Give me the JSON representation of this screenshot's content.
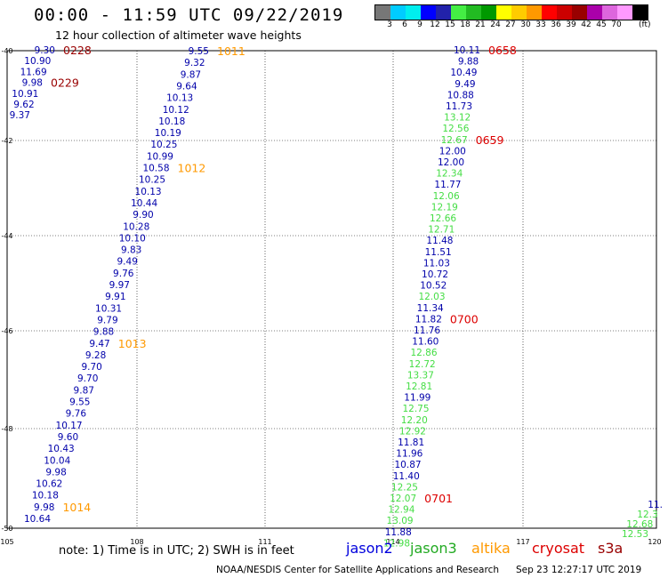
{
  "title": "00:00 - 11:59 UTC 09/22/2019",
  "subtitle": "12 hour collection of altimeter wave heights",
  "color_scale": {
    "swatches": [
      "#777777",
      "#00ccff",
      "#00eeee",
      "#0000ff",
      "#2222aa",
      "#44ee44",
      "#22bb22",
      "#009900",
      "#ffff00",
      "#ffcc00",
      "#ff9900",
      "#ff0000",
      "#cc0000",
      "#990000",
      "#aa00aa",
      "#dd66dd",
      "#ff99ff",
      "#000000"
    ],
    "labels": [
      "3",
      "6",
      "9",
      "12",
      "15",
      "18",
      "21",
      "24",
      "27",
      "30",
      "33",
      "36",
      "39",
      "42",
      "45",
      "70"
    ],
    "unit": "(ft)"
  },
  "map": {
    "lon_ticks": [
      "105",
      "108",
      "111",
      "114",
      "117",
      "120"
    ],
    "lat_ticks": [
      "-40",
      "-42",
      "-44",
      "-46",
      "-48",
      "-50"
    ],
    "track_colors": {
      "jason2": "#0000aa",
      "jason3": "#44dd44",
      "altika": "#ff9900",
      "cryosat": "#dd0000"
    },
    "tracks": [
      {
        "name": "track-west",
        "points": [
          {
            "v": "9.30",
            "s": "jason2"
          },
          {
            "v": "10.90",
            "s": "jason2"
          },
          {
            "v": "11.69",
            "s": "jason2"
          },
          {
            "v": "9.98",
            "s": "jason2"
          },
          {
            "v": "10.91",
            "s": "jason2"
          },
          {
            "v": "9.62",
            "s": "jason2"
          },
          {
            "v": "9.37",
            "s": "jason2"
          }
        ],
        "time_labels": [
          {
            "t": "0228",
            "row": 0,
            "color": "#990000"
          },
          {
            "t": "0229",
            "row": 3,
            "color": "#990000"
          }
        ]
      },
      {
        "name": "track-middle",
        "points": [
          {
            "v": "9.55",
            "s": "jason2"
          },
          {
            "v": "9.32",
            "s": "jason2"
          },
          {
            "v": "9.87",
            "s": "jason2"
          },
          {
            "v": "9.64",
            "s": "jason2"
          },
          {
            "v": "10.13",
            "s": "jason2"
          },
          {
            "v": "10.12",
            "s": "jason2"
          },
          {
            "v": "10.18",
            "s": "jason2"
          },
          {
            "v": "10.19",
            "s": "jason2"
          },
          {
            "v": "10.25",
            "s": "jason2"
          },
          {
            "v": "10.99",
            "s": "jason2"
          },
          {
            "v": "10.58",
            "s": "jason2"
          },
          {
            "v": "10.25",
            "s": "jason2"
          },
          {
            "v": "10.13",
            "s": "jason2"
          },
          {
            "v": "10.44",
            "s": "jason2"
          },
          {
            "v": "9.90",
            "s": "jason2"
          },
          {
            "v": "10.28",
            "s": "jason2"
          },
          {
            "v": "10.10",
            "s": "jason2"
          },
          {
            "v": "9.83",
            "s": "jason2"
          },
          {
            "v": "9.49",
            "s": "jason2"
          },
          {
            "v": "9.76",
            "s": "jason2"
          },
          {
            "v": "9.97",
            "s": "jason2"
          },
          {
            "v": "9.91",
            "s": "jason2"
          },
          {
            "v": "10.31",
            "s": "jason2"
          },
          {
            "v": "9.79",
            "s": "jason2"
          },
          {
            "v": "9.88",
            "s": "jason2"
          },
          {
            "v": "9.47",
            "s": "jason2"
          },
          {
            "v": "9.28",
            "s": "jason2"
          },
          {
            "v": "9.70",
            "s": "jason2"
          },
          {
            "v": "9.70",
            "s": "jason2"
          },
          {
            "v": "9.87",
            "s": "jason2"
          },
          {
            "v": "9.55",
            "s": "jason2"
          },
          {
            "v": "9.76",
            "s": "jason2"
          },
          {
            "v": "10.17",
            "s": "jason2"
          },
          {
            "v": "9.60",
            "s": "jason2"
          },
          {
            "v": "10.43",
            "s": "jason2"
          },
          {
            "v": "10.04",
            "s": "jason2"
          },
          {
            "v": "9.98",
            "s": "jason2"
          },
          {
            "v": "10.62",
            "s": "jason2"
          },
          {
            "v": "10.18",
            "s": "jason2"
          },
          {
            "v": "9.98",
            "s": "jason2"
          },
          {
            "v": "10.64",
            "s": "jason2"
          }
        ],
        "time_labels": [
          {
            "t": "1011",
            "row": 0,
            "color": "#ff9900"
          },
          {
            "t": "1012",
            "row": 10,
            "color": "#ff9900"
          },
          {
            "t": "1013",
            "row": 25,
            "color": "#ff9900"
          },
          {
            "t": "1014",
            "row": 39,
            "color": "#ff9900"
          }
        ]
      },
      {
        "name": "track-east",
        "points": [
          {
            "v": "10.11",
            "s": "jason2"
          },
          {
            "v": "9.88",
            "s": "jason2"
          },
          {
            "v": "10.49",
            "s": "jason2"
          },
          {
            "v": "9.49",
            "s": "jason2"
          },
          {
            "v": "10.88",
            "s": "jason2"
          },
          {
            "v": "11.73",
            "s": "jason2"
          },
          {
            "v": "13.12",
            "s": "jason3"
          },
          {
            "v": "12.56",
            "s": "jason3"
          },
          {
            "v": "12.67",
            "s": "jason3"
          },
          {
            "v": "12.00",
            "s": "jason2"
          },
          {
            "v": "12.00",
            "s": "jason2"
          },
          {
            "v": "12.34",
            "s": "jason3"
          },
          {
            "v": "11.77",
            "s": "jason2"
          },
          {
            "v": "12.06",
            "s": "jason3"
          },
          {
            "v": "12.19",
            "s": "jason3"
          },
          {
            "v": "12.66",
            "s": "jason3"
          },
          {
            "v": "12.71",
            "s": "jason3"
          },
          {
            "v": "11.48",
            "s": "jason2"
          },
          {
            "v": "11.51",
            "s": "jason2"
          },
          {
            "v": "11.03",
            "s": "jason2"
          },
          {
            "v": "10.72",
            "s": "jason2"
          },
          {
            "v": "10.52",
            "s": "jason2"
          },
          {
            "v": "12.03",
            "s": "jason3"
          },
          {
            "v": "11.34",
            "s": "jason2"
          },
          {
            "v": "11.82",
            "s": "jason2"
          },
          {
            "v": "11.76",
            "s": "jason2"
          },
          {
            "v": "11.60",
            "s": "jason2"
          },
          {
            "v": "12.86",
            "s": "jason3"
          },
          {
            "v": "12.72",
            "s": "jason3"
          },
          {
            "v": "13.37",
            "s": "jason3"
          },
          {
            "v": "12.81",
            "s": "jason3"
          },
          {
            "v": "11.99",
            "s": "jason2"
          },
          {
            "v": "12.75",
            "s": "jason3"
          },
          {
            "v": "12.20",
            "s": "jason3"
          },
          {
            "v": "12.92",
            "s": "jason3"
          },
          {
            "v": "11.81",
            "s": "jason2"
          },
          {
            "v": "11.96",
            "s": "jason2"
          },
          {
            "v": "10.87",
            "s": "jason2"
          },
          {
            "v": "11.40",
            "s": "jason2"
          },
          {
            "v": "12.25",
            "s": "jason3"
          },
          {
            "v": "12.07",
            "s": "jason3"
          },
          {
            "v": "12.94",
            "s": "jason3"
          },
          {
            "v": "13.09",
            "s": "jason3"
          },
          {
            "v": "11.88",
            "s": "jason2"
          },
          {
            "v": "12.98",
            "s": "jason3"
          }
        ],
        "time_labels": [
          {
            "t": "0658",
            "row": 0,
            "color": "#dd0000"
          },
          {
            "t": "0659",
            "row": 8,
            "color": "#dd0000"
          },
          {
            "t": "0700",
            "row": 24,
            "color": "#dd0000"
          },
          {
            "t": "0701",
            "row": 40,
            "color": "#dd0000"
          }
        ]
      },
      {
        "name": "track-far-east",
        "points": [
          {
            "v": "11.",
            "s": "jason2"
          },
          {
            "v": "12.3",
            "s": "jason3"
          },
          {
            "v": "12.68",
            "s": "jason3"
          },
          {
            "v": "12.53",
            "s": "jason3"
          }
        ],
        "time_labels": []
      }
    ]
  },
  "footer": {
    "note": "note:  1) Time is in UTC;  2) SWH is in feet",
    "satellites": [
      {
        "name": "jason2",
        "color": "#0000dd"
      },
      {
        "name": "jason3",
        "color": "#22aa22"
      },
      {
        "name": "altika",
        "color": "#ff9900"
      },
      {
        "name": "cryosat",
        "color": "#dd0000"
      },
      {
        "name": "s3a",
        "color": "#990000"
      }
    ],
    "credit": "NOAA/NESDIS Center for Satellite Applications and Research",
    "timestamp": "Sep 23 12:27:17 UTC 2019"
  }
}
